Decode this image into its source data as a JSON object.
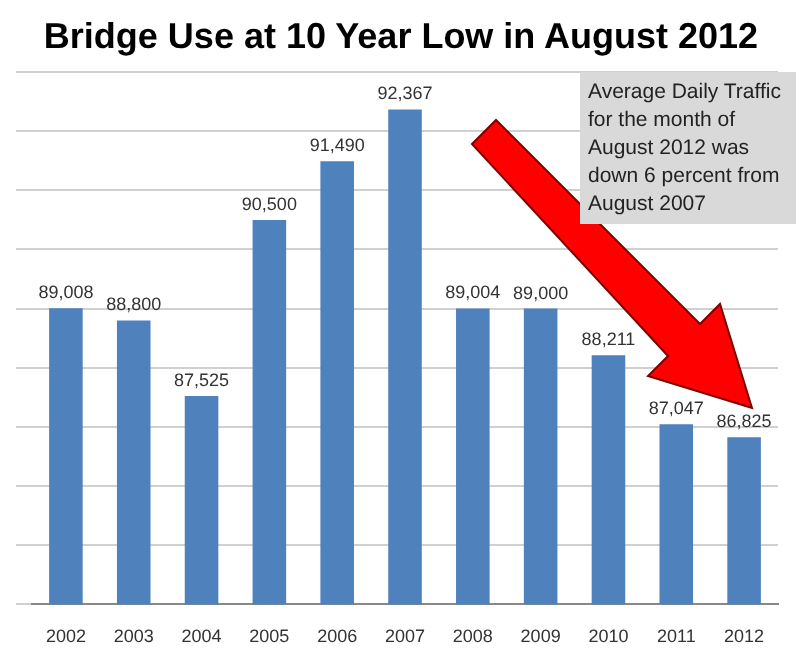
{
  "chart_data": {
    "type": "bar",
    "title": "Bridge Use at 10 Year Low in August 2012",
    "categories": [
      "2002",
      "2003",
      "2004",
      "2005",
      "2006",
      "2007",
      "2008",
      "2009",
      "2010",
      "2011",
      "2012"
    ],
    "values": [
      89008,
      88800,
      87525,
      90500,
      91490,
      92367,
      89004,
      89000,
      88211,
      87047,
      86825
    ],
    "value_labels": [
      "89,008",
      "88,800",
      "87,525",
      "90,500",
      "91,490",
      "92,367",
      "89,004",
      "89,000",
      "88,211",
      "87,047",
      "86,825"
    ],
    "color": "#4f81bd",
    "ylim": [
      84000,
      93000
    ],
    "yticks": [
      {
        "value": 84000,
        "label": null
      },
      {
        "value": 85000,
        "label": null
      },
      {
        "value": 86000,
        "label": null
      },
      {
        "value": 87000,
        "label": null
      },
      {
        "value": 88000,
        "label": null
      },
      {
        "value": 89000,
        "label": null
      },
      {
        "value": 90000,
        "label": null
      },
      {
        "value": 91000,
        "label": null
      },
      {
        "value": 92000,
        "label": null
      },
      {
        "value": 93000,
        "label": null
      }
    ],
    "tick_labels": "x",
    "grid": "y",
    "annotations": [
      "Average Daily Traffic for the month of August 2012 was down 6 percent from August 2007"
    ]
  }
}
